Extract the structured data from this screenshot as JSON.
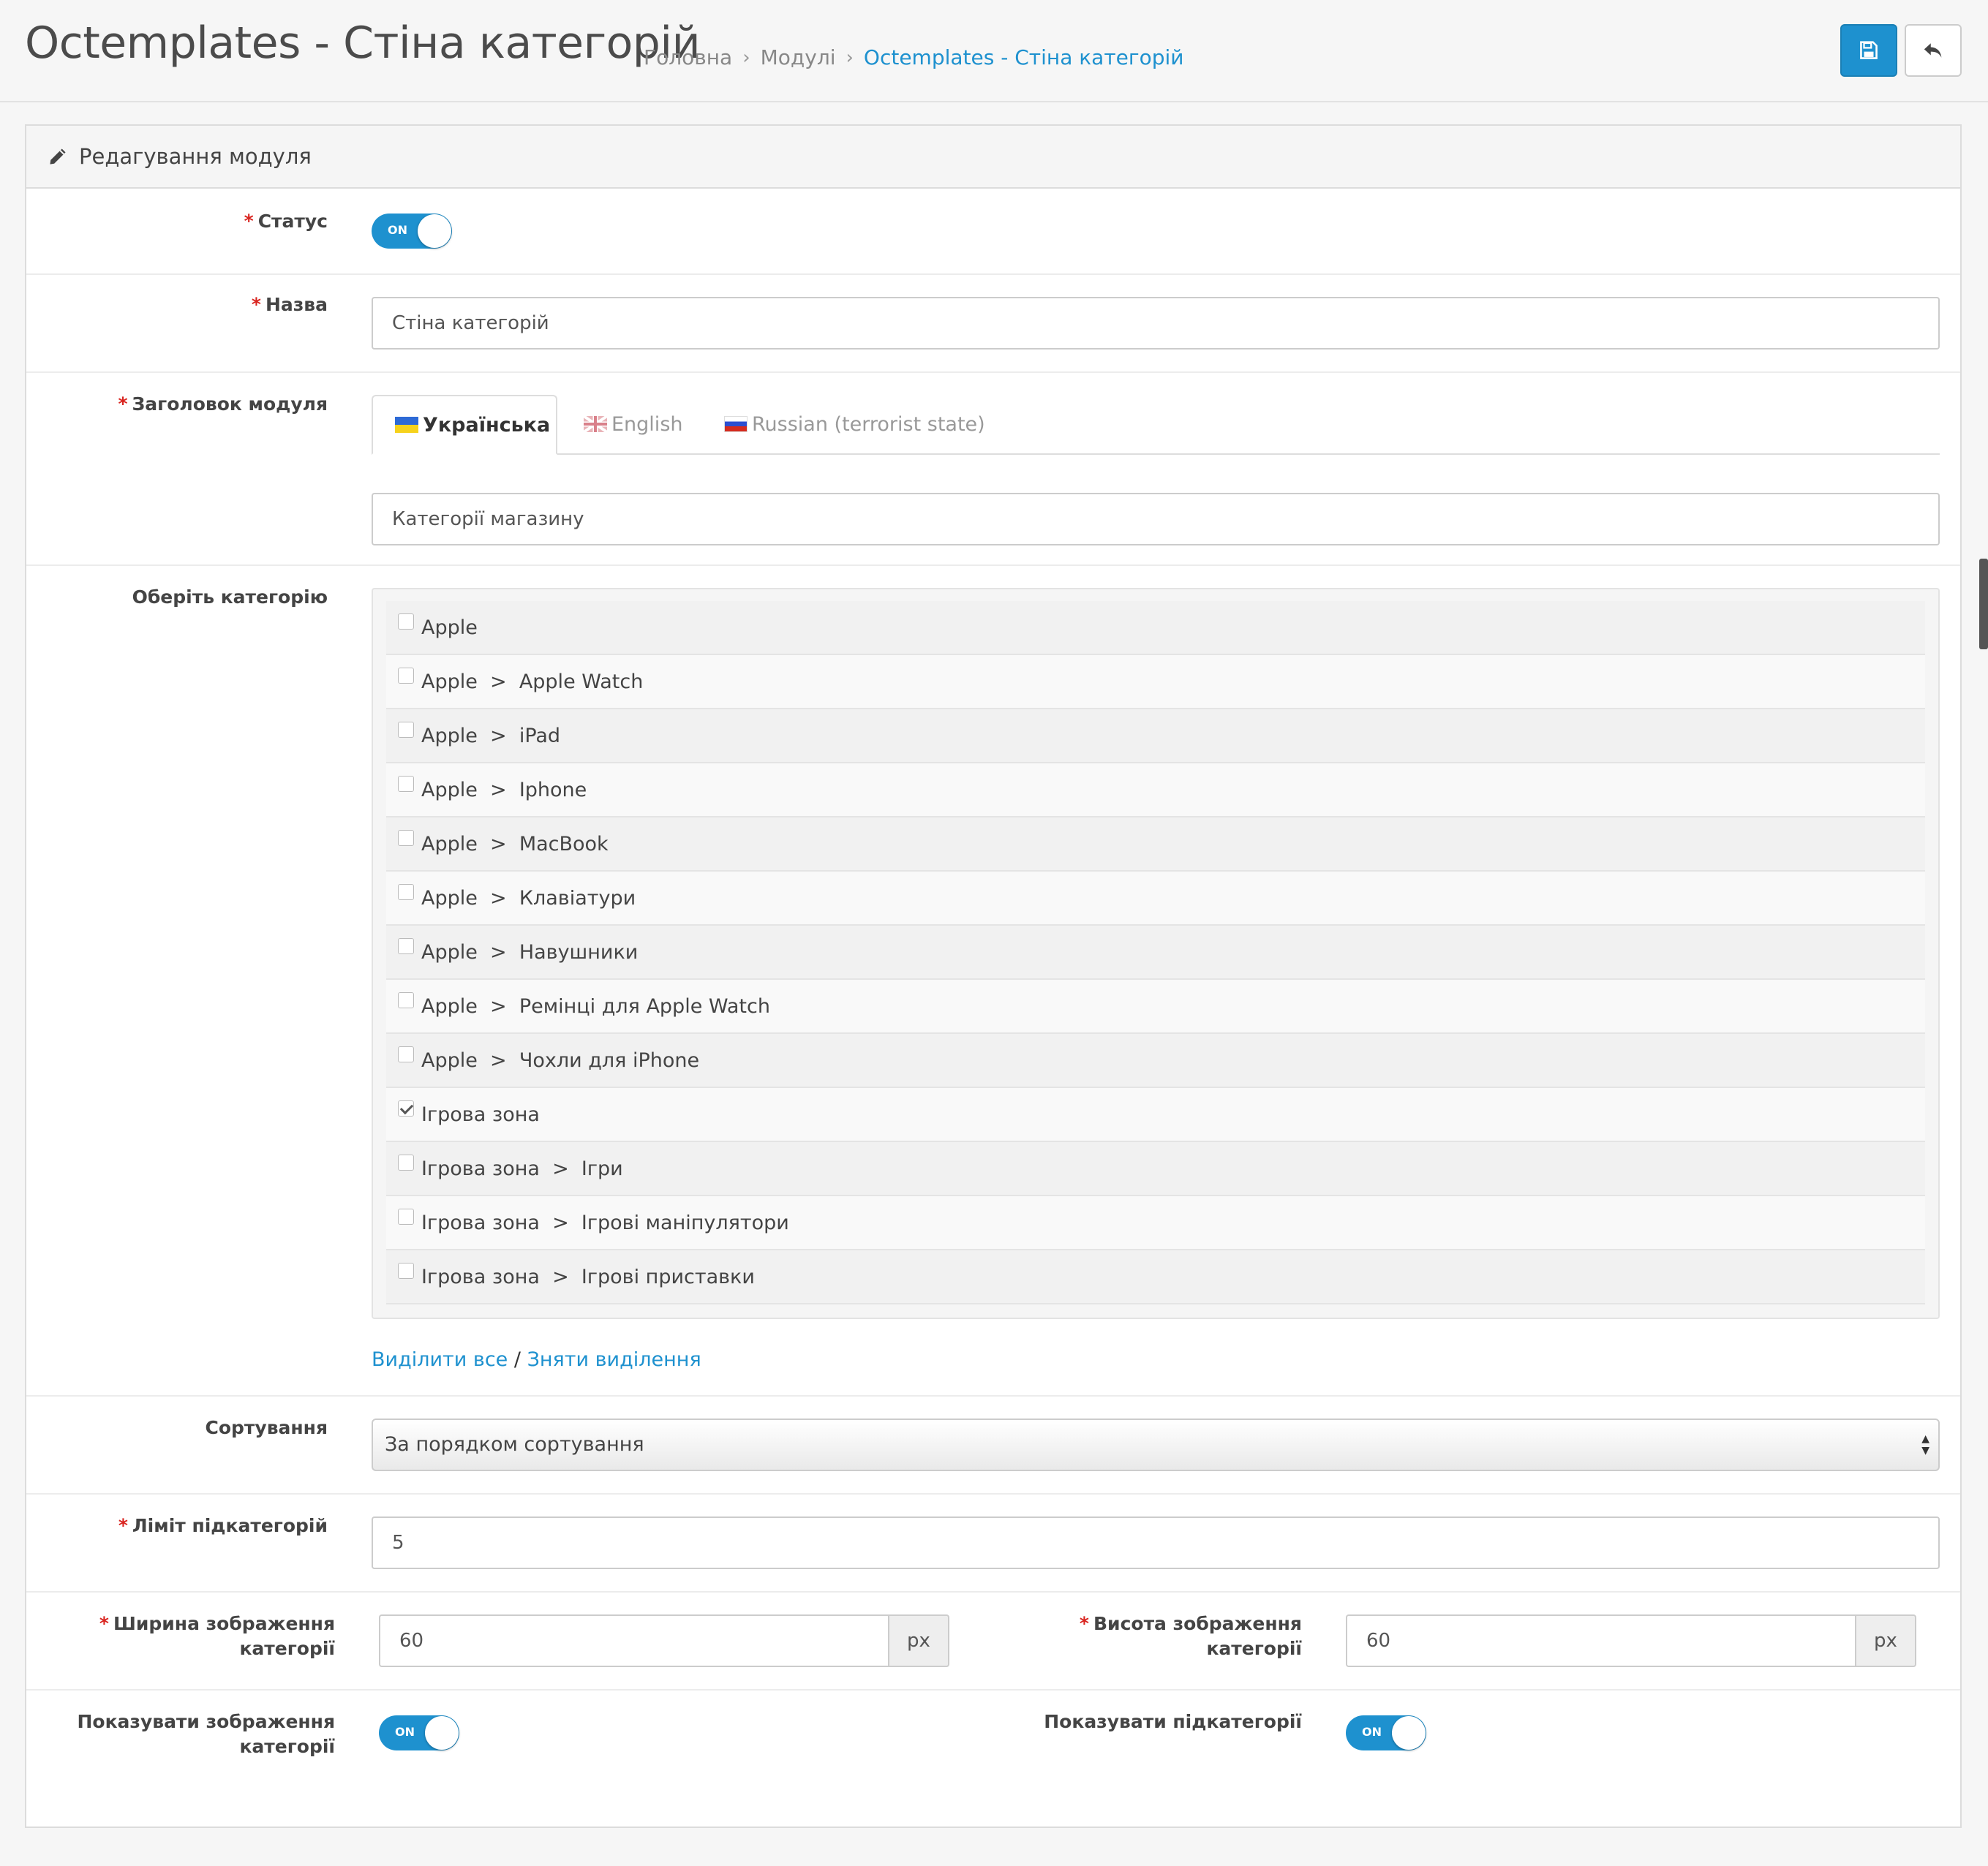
{
  "header": {
    "title": "Octemplates - Стіна категорій",
    "breadcrumbs": [
      "Головна",
      "Модулі",
      "Octemplates - Стіна категорій"
    ],
    "breadcrumb_separator": "›",
    "save_icon": "save-icon",
    "back_icon": "reply-icon"
  },
  "panel": {
    "heading": "Редагування модуля",
    "heading_icon": "pencil-icon"
  },
  "form": {
    "required_mark": "*",
    "status_label": "Статус",
    "status_toggle": "ON",
    "name_label": "Назва",
    "name_value": "Стіна категорій",
    "title_label": "Заголовок модуля",
    "languages": [
      "Українська",
      "English",
      "Russian (terrorist state)"
    ],
    "title_value": "Категорії магазину",
    "categories_label": "Оберіть категорію",
    "categories": [
      {
        "path": [
          "Apple"
        ],
        "checked": false
      },
      {
        "path": [
          "Apple",
          "Apple Watch"
        ],
        "checked": false
      },
      {
        "path": [
          "Apple",
          "iPad"
        ],
        "checked": false
      },
      {
        "path": [
          "Apple",
          "Iphone"
        ],
        "checked": false
      },
      {
        "path": [
          "Apple",
          "MacBook"
        ],
        "checked": false
      },
      {
        "path": [
          "Apple",
          "Клавіатури"
        ],
        "checked": false
      },
      {
        "path": [
          "Apple",
          "Навушники"
        ],
        "checked": false
      },
      {
        "path": [
          "Apple",
          "Ремінці для Apple Watch"
        ],
        "checked": false
      },
      {
        "path": [
          "Apple",
          "Чохли для iPhone"
        ],
        "checked": false
      },
      {
        "path": [
          "Ігрова зона"
        ],
        "checked": true
      },
      {
        "path": [
          "Ігрова зона",
          "Ігри"
        ],
        "checked": false
      },
      {
        "path": [
          "Ігрова зона",
          "Ігрові маніпулятори"
        ],
        "checked": false
      },
      {
        "path": [
          "Ігрова зона",
          "Ігрові приставки"
        ],
        "checked": false
      }
    ],
    "category_separator": ">",
    "select_all": "Виділити все",
    "links_divider": "/",
    "deselect_all": "Зняти виділення",
    "sort_label": "Сортування",
    "sort_value": "За порядком сортування",
    "subcat_limit_label": "Ліміт підкатегорій",
    "subcat_limit_value": "5",
    "image_width_label_1": "Ширина зображення",
    "image_width_label_2": "категорії",
    "image_width_value": "60",
    "image_height_label_1": "Висота зображення",
    "image_height_label_2": "категорії",
    "image_height_value": "60",
    "unit": "px",
    "show_images_label_1": "Показувати зображення",
    "show_images_label_2": "категорії",
    "show_images_toggle": "ON",
    "show_subcats_label": "Показувати підкатегорії",
    "show_subcats_toggle": "ON"
  },
  "colors": {
    "primary": "#1e91cf",
    "required": "#d9241f"
  }
}
